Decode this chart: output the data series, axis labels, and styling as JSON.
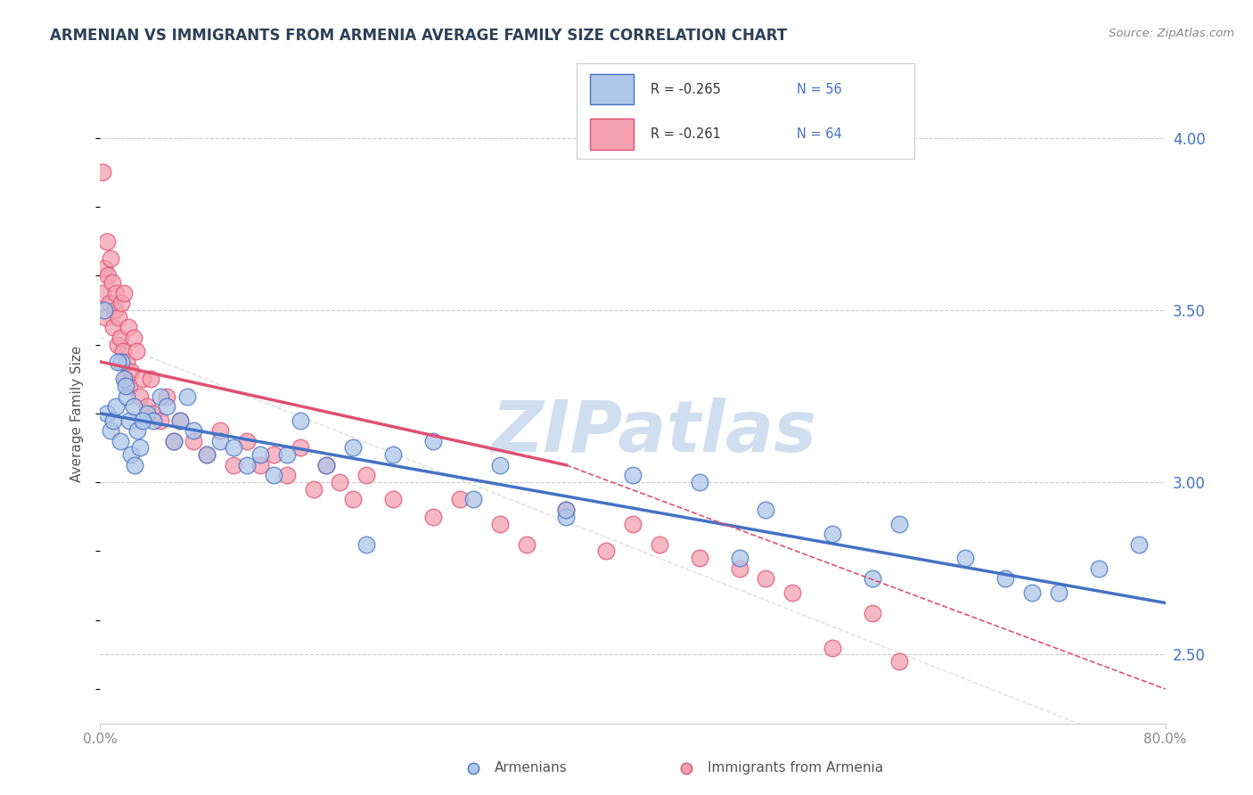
{
  "title": "ARMENIAN VS IMMIGRANTS FROM ARMENIA AVERAGE FAMILY SIZE CORRELATION CHART",
  "source_text": "Source: ZipAtlas.com",
  "ylabel": "Average Family Size",
  "xmin": 0.0,
  "xmax": 80.0,
  "ymin": 2.3,
  "ymax": 4.1,
  "yticks": [
    2.5,
    3.0,
    3.5,
    4.0
  ],
  "grid_color": "#cccccc",
  "background_color": "#ffffff",
  "armenians_color": "#aec6e8",
  "immigrants_color": "#f4a0b0",
  "armenians_line_color": "#4472c4",
  "immigrants_line_color": "#e05070",
  "legend_r1": "-0.265",
  "legend_n1": "56",
  "legend_r2": "-0.261",
  "legend_n2": "64",
  "armenians_scatter_x": [
    0.5,
    0.8,
    1.0,
    1.2,
    1.5,
    1.6,
    1.8,
    2.0,
    2.2,
    2.3,
    2.5,
    2.8,
    3.0,
    3.5,
    4.0,
    4.5,
    5.0,
    5.5,
    6.0,
    7.0,
    8.0,
    9.0,
    10.0,
    11.0,
    12.0,
    13.0,
    15.0,
    17.0,
    19.0,
    22.0,
    25.0,
    28.0,
    30.0,
    35.0,
    40.0,
    45.0,
    50.0,
    55.0,
    60.0,
    65.0,
    68.0,
    72.0,
    75.0,
    78.0,
    1.3,
    1.9,
    2.6,
    3.2,
    6.5,
    14.0,
    20.0,
    35.0,
    48.0,
    58.0,
    70.0,
    0.3
  ],
  "armenians_scatter_y": [
    3.2,
    3.15,
    3.18,
    3.22,
    3.12,
    3.35,
    3.3,
    3.25,
    3.18,
    3.08,
    3.22,
    3.15,
    3.1,
    3.2,
    3.18,
    3.25,
    3.22,
    3.12,
    3.18,
    3.15,
    3.08,
    3.12,
    3.1,
    3.05,
    3.08,
    3.02,
    3.18,
    3.05,
    3.1,
    3.08,
    3.12,
    2.95,
    3.05,
    2.9,
    3.02,
    3.0,
    2.92,
    2.85,
    2.88,
    2.78,
    2.72,
    2.68,
    2.75,
    2.82,
    3.35,
    3.28,
    3.05,
    3.18,
    3.25,
    3.08,
    2.82,
    2.92,
    2.78,
    2.72,
    2.68,
    3.5
  ],
  "immigrants_scatter_x": [
    0.2,
    0.3,
    0.4,
    0.5,
    0.6,
    0.7,
    0.8,
    0.9,
    1.0,
    1.1,
    1.2,
    1.3,
    1.4,
    1.5,
    1.6,
    1.7,
    1.8,
    1.9,
    2.0,
    2.1,
    2.2,
    2.3,
    2.5,
    2.7,
    3.0,
    3.2,
    3.5,
    4.0,
    4.5,
    5.0,
    5.5,
    6.0,
    7.0,
    8.0,
    9.0,
    10.0,
    11.0,
    12.0,
    13.0,
    14.0,
    15.0,
    16.0,
    17.0,
    18.0,
    19.0,
    20.0,
    22.0,
    25.0,
    27.0,
    30.0,
    32.0,
    35.0,
    38.0,
    40.0,
    42.0,
    45.0,
    48.0,
    50.0,
    52.0,
    55.0,
    58.0,
    60.0,
    3.8,
    0.15
  ],
  "immigrants_scatter_y": [
    3.55,
    3.62,
    3.48,
    3.7,
    3.6,
    3.52,
    3.65,
    3.58,
    3.45,
    3.5,
    3.55,
    3.4,
    3.48,
    3.42,
    3.52,
    3.38,
    3.55,
    3.3,
    3.35,
    3.45,
    3.28,
    3.32,
    3.42,
    3.38,
    3.25,
    3.3,
    3.22,
    3.2,
    3.18,
    3.25,
    3.12,
    3.18,
    3.12,
    3.08,
    3.15,
    3.05,
    3.12,
    3.05,
    3.08,
    3.02,
    3.1,
    2.98,
    3.05,
    3.0,
    2.95,
    3.02,
    2.95,
    2.9,
    2.95,
    2.88,
    2.82,
    2.92,
    2.8,
    2.88,
    2.82,
    2.78,
    2.75,
    2.72,
    2.68,
    2.52,
    2.62,
    2.48,
    3.3,
    3.9
  ],
  "armenians_trend": [
    0,
    80,
    3.2,
    2.65
  ],
  "immigrants_trend_solid": [
    0,
    35,
    3.35,
    3.05
  ],
  "immigrants_trend_dashed": [
    35,
    80,
    3.05,
    2.4
  ],
  "ref_line": [
    0,
    80,
    3.42,
    2.2
  ],
  "title_color": "#2e4057",
  "source_color": "#888888",
  "axis_color": "#888888",
  "tick_color": "#4472c4",
  "watermark_text": "ZIPatlas",
  "watermark_color": "#d0dff0"
}
